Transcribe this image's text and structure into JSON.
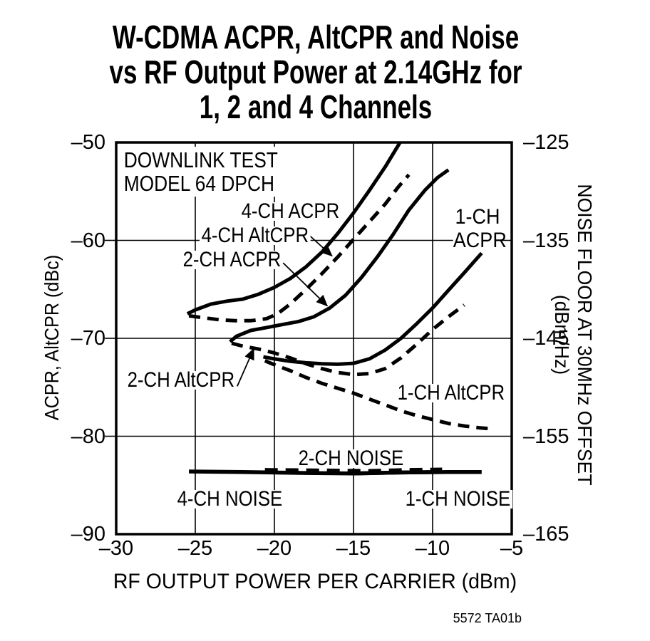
{
  "page": {
    "title_line1": "W-CDMA ACPR, AltCPR and Noise",
    "title_line2": "vs RF Output Power at 2.14GHz for",
    "title_line3": "1, 2 and 4 Channels",
    "caption": "5572 TA01b",
    "background_color": "#ffffff",
    "ink_color": "#000000"
  },
  "chart_data": {
    "type": "line",
    "title": "W-CDMA ACPR, AltCPR and Noise vs RF Output Power at 2.14GHz for 1, 2 and 4 Channels",
    "grid": "on",
    "x_axis": {
      "label": "RF OUTPUT POWER PER CARRIER (dBm)",
      "range": [
        -30,
        -5
      ],
      "ticks": [
        -30,
        -25,
        -20,
        -15,
        -10,
        -5
      ],
      "tick_labels": [
        "–30",
        "–25",
        "–20",
        "–15",
        "–10",
        "–5"
      ],
      "gridlines": [
        -25,
        -20,
        -15,
        -10
      ]
    },
    "y_axis_left": {
      "label": "ACPR, AltCPR (dBc)",
      "range": [
        -50,
        -90
      ],
      "ticks": [
        -50,
        -60,
        -70,
        -80,
        -90
      ],
      "tick_labels": [
        "–50",
        "–60",
        "–70",
        "–80",
        "–90"
      ],
      "gridlines": [
        -60,
        -70,
        -80
      ]
    },
    "y_axis_right": {
      "label": "NOISE FLOOR AT 30MHz OFFSET (dBm/Hz)",
      "range": [
        -125,
        -165
      ],
      "ticks": [
        -125,
        -135,
        -145,
        -155,
        -165
      ],
      "tick_labels": [
        "–125",
        "–135",
        "–145",
        "–155",
        "–165"
      ],
      "offset_from_left_axis": -75
    },
    "annotations": {
      "test_note_line1": "DOWNLINK TEST",
      "test_note_line2": "MODEL 64 DPCH",
      "labels": {
        "ch4_acpr": "4-CH ACPR",
        "ch4_altcpr": "4-CH AltCPR",
        "ch2_acpr": "2-CH ACPR",
        "ch1_acpr_line1": "1-CH",
        "ch1_acpr_line2": "ACPR",
        "ch2_altcpr": "2-CH AltCPR",
        "ch1_altcpr": "1-CH AltCPR",
        "ch2_noise": "2-CH NOISE",
        "ch4_noise": "4-CH NOISE",
        "ch1_noise": "1-CH NOISE"
      },
      "arrows": [
        {
          "name": "arrow-to-4ch-altcpr",
          "from": [
            -17.85,
            -59.4
          ],
          "to": [
            -16.35,
            -61.6
          ]
        },
        {
          "name": "arrow-to-2ch-acpr",
          "from": [
            -19.45,
            -62.3
          ],
          "to": [
            -16.65,
            -66.7
          ]
        },
        {
          "name": "arrow-to-2ch-altcpr",
          "from": [
            -22.35,
            -74.9
          ],
          "to": [
            -21.3,
            -71.05
          ]
        }
      ]
    },
    "series": [
      {
        "id": "ch4-acpr",
        "name": "4-CH ACPR",
        "line_style": "solid",
        "units": "dBc",
        "points": [
          [
            -25.5,
            -67.5
          ],
          [
            -25,
            -67.1
          ],
          [
            -24,
            -66.5
          ],
          [
            -23,
            -66.2
          ],
          [
            -22,
            -66.0
          ],
          [
            -21,
            -65.5
          ],
          [
            -20,
            -64.8
          ],
          [
            -19,
            -63.9
          ],
          [
            -18,
            -62.7
          ],
          [
            -17,
            -61.2
          ],
          [
            -16,
            -59.3
          ],
          [
            -15,
            -57.2
          ],
          [
            -14,
            -54.9
          ],
          [
            -13,
            -52.5
          ],
          [
            -12.1,
            -50.1
          ],
          [
            -11.85,
            -49.4
          ]
        ]
      },
      {
        "id": "ch4-altcpr",
        "name": "4-CH AltCPR",
        "line_style": "dashed",
        "units": "dBc",
        "points": [
          [
            -25.4,
            -67.7
          ],
          [
            -24.5,
            -67.9
          ],
          [
            -23.5,
            -68.1
          ],
          [
            -22.5,
            -68.2
          ],
          [
            -21.5,
            -68.2
          ],
          [
            -20.5,
            -68.0
          ],
          [
            -19.8,
            -67.5
          ],
          [
            -19,
            -66.5
          ],
          [
            -18,
            -65.0
          ],
          [
            -17,
            -63.4
          ],
          [
            -16,
            -61.7
          ],
          [
            -15,
            -59.9
          ],
          [
            -14,
            -58.1
          ],
          [
            -13,
            -56.3
          ],
          [
            -12.2,
            -54.6
          ],
          [
            -11.5,
            -53.3
          ]
        ]
      },
      {
        "id": "ch2-acpr",
        "name": "2-CH ACPR",
        "line_style": "solid",
        "units": "dBc",
        "points": [
          [
            -22.8,
            -70.35
          ],
          [
            -22.4,
            -69.8
          ],
          [
            -21.5,
            -69.2
          ],
          [
            -20.5,
            -68.9
          ],
          [
            -19.5,
            -68.6
          ],
          [
            -18.5,
            -68.3
          ],
          [
            -17.5,
            -67.8
          ],
          [
            -16.5,
            -66.9
          ],
          [
            -15.5,
            -65.6
          ],
          [
            -14.5,
            -63.8
          ],
          [
            -13.5,
            -61.7
          ],
          [
            -12.5,
            -59.4
          ],
          [
            -11.5,
            -56.9
          ],
          [
            -10.5,
            -54.9
          ],
          [
            -9.7,
            -53.6
          ],
          [
            -9.0,
            -52.8
          ]
        ]
      },
      {
        "id": "ch1-acpr",
        "name": "1-CH ACPR",
        "line_style": "solid",
        "units": "dBc",
        "points": [
          [
            -20.7,
            -71.9
          ],
          [
            -20,
            -72.1
          ],
          [
            -19,
            -72.35
          ],
          [
            -18,
            -72.5
          ],
          [
            -17,
            -72.6
          ],
          [
            -16,
            -72.65
          ],
          [
            -15,
            -72.55
          ],
          [
            -14,
            -72.1
          ],
          [
            -13,
            -71.2
          ],
          [
            -12,
            -70.0
          ],
          [
            -11,
            -68.5
          ],
          [
            -10,
            -66.9
          ],
          [
            -9,
            -65.1
          ],
          [
            -8,
            -63.3
          ],
          [
            -6.9,
            -61.3
          ]
        ]
      },
      {
        "id": "ch2-altcpr",
        "name": "2-CH AltCPR",
        "line_style": "dashed",
        "units": "dBc",
        "points": [
          [
            -22.7,
            -70.5
          ],
          [
            -22,
            -70.8
          ],
          [
            -21,
            -71.1
          ],
          [
            -20,
            -71.5
          ],
          [
            -19,
            -72.0
          ],
          [
            -18,
            -72.6
          ],
          [
            -17,
            -73.1
          ],
          [
            -16,
            -73.5
          ],
          [
            -15,
            -73.7
          ],
          [
            -14,
            -73.6
          ],
          [
            -13,
            -73.1
          ],
          [
            -12,
            -72.0
          ],
          [
            -11,
            -70.6
          ],
          [
            -10,
            -69.1
          ],
          [
            -9,
            -67.8
          ],
          [
            -8,
            -66.6
          ]
        ]
      },
      {
        "id": "ch1-altcpr",
        "name": "1-CH AltCPR",
        "line_style": "dashed",
        "units": "dBc",
        "points": [
          [
            -20.6,
            -72.3
          ],
          [
            -20,
            -72.7
          ],
          [
            -19,
            -73.3
          ],
          [
            -18,
            -74.0
          ],
          [
            -17,
            -74.6
          ],
          [
            -16,
            -75.1
          ],
          [
            -15,
            -75.6
          ],
          [
            -14,
            -76.2
          ],
          [
            -13,
            -76.8
          ],
          [
            -12,
            -77.4
          ],
          [
            -11,
            -77.9
          ],
          [
            -10,
            -78.3
          ],
          [
            -9,
            -78.7
          ],
          [
            -8,
            -78.95
          ],
          [
            -7,
            -79.15
          ],
          [
            -6.2,
            -79.25
          ]
        ]
      },
      {
        "id": "ch4-noise",
        "name": "4-CH NOISE",
        "line_style": "solid",
        "units": "dBm/Hz (right axis, value = left - 75)",
        "points": [
          [
            -25.4,
            -83.6
          ],
          [
            -22,
            -83.65
          ],
          [
            -18,
            -83.75
          ],
          [
            -15,
            -83.8
          ],
          [
            -12,
            -83.7
          ],
          [
            -9.5,
            -83.65
          ]
        ]
      },
      {
        "id": "ch1-noise",
        "name": "1-CH NOISE",
        "line_style": "solid",
        "units": "dBm/Hz (right axis, value = left - 75)",
        "points": [
          [
            -15,
            -83.8
          ],
          [
            -12,
            -83.7
          ],
          [
            -9,
            -83.65
          ],
          [
            -6.9,
            -83.65
          ]
        ]
      },
      {
        "id": "ch2-noise",
        "name": "2-CH NOISE",
        "line_style": "dashed",
        "units": "dBm/Hz (right axis, value = left - 75)",
        "points": [
          [
            -20.6,
            -83.45
          ],
          [
            -17,
            -83.5
          ],
          [
            -14,
            -83.55
          ],
          [
            -11.5,
            -83.45
          ],
          [
            -9.4,
            -83.4
          ]
        ]
      }
    ]
  }
}
